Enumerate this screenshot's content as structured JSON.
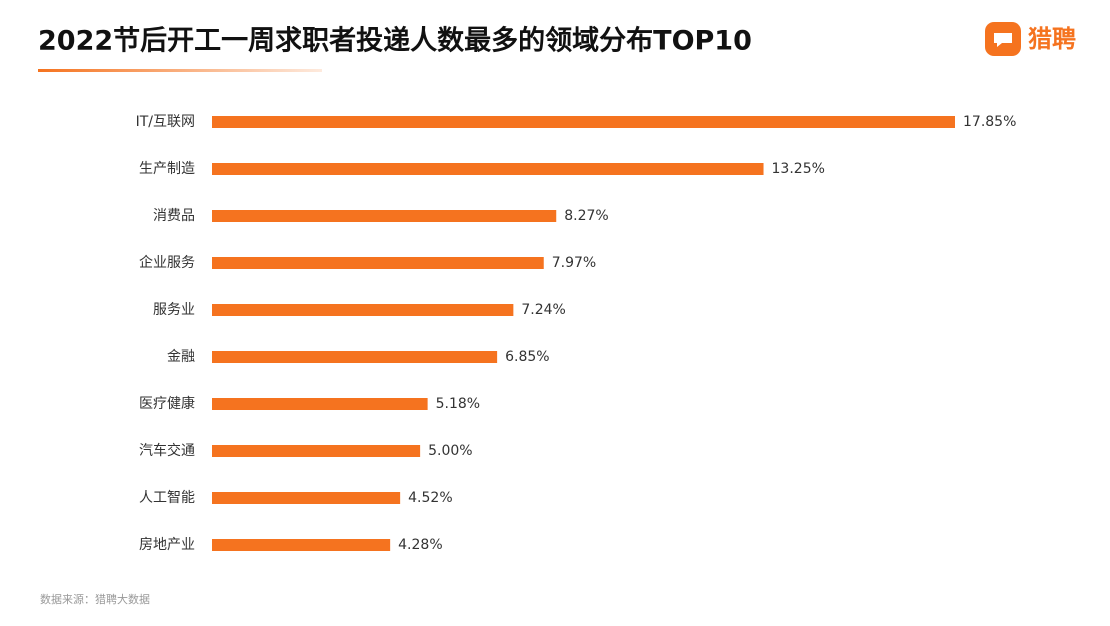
{
  "chart_data": {
    "type": "bar",
    "title": "2022节后开工一周求职者投递人数最多的领域分布TOP10",
    "categories": [
      "IT/互联网",
      "生产制造",
      "消费品",
      "企业服务",
      "服务业",
      "金融",
      "医疗健康",
      "汽车交通",
      "人工智能",
      "房地产业"
    ],
    "values": [
      17.85,
      13.25,
      8.27,
      7.97,
      7.24,
      6.85,
      5.18,
      5.0,
      4.52,
      4.28
    ],
    "value_labels": [
      "17.85%",
      "13.25%",
      "8.27%",
      "7.97%",
      "7.24%",
      "6.85%",
      "5.18%",
      "5.00%",
      "4.52%",
      "4.28%"
    ],
    "color": "#f5731f"
  },
  "logo": "猎聘",
  "source": "数据来源：猎聘大数据"
}
